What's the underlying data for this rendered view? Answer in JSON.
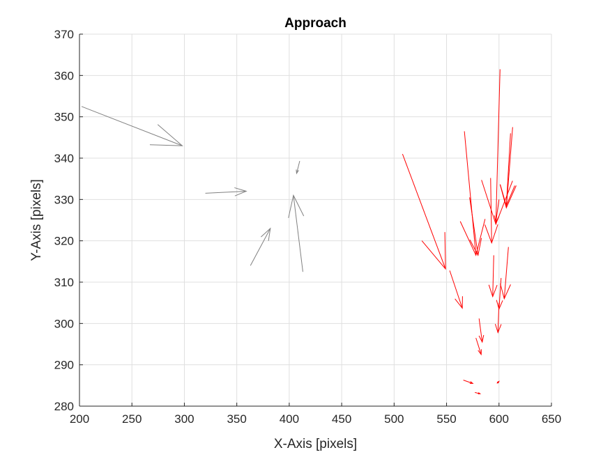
{
  "chart_data": {
    "type": "quiver",
    "title": "Approach",
    "xlabel": "X-Axis [pixels]",
    "ylabel": "Y-Axis [pixels]",
    "xlim": [
      200,
      650
    ],
    "ylim": [
      280,
      370
    ],
    "xticks": [
      200,
      250,
      300,
      350,
      400,
      450,
      500,
      550,
      600,
      650
    ],
    "yticks": [
      280,
      290,
      300,
      310,
      320,
      330,
      340,
      350,
      360,
      370
    ],
    "grid": true,
    "series": [
      {
        "color": "#808080",
        "vectors": [
          {
            "x": 202,
            "y": 352.5,
            "x2": 298,
            "y2": 343
          },
          {
            "x": 320,
            "y": 331.5,
            "x2": 359,
            "y2": 332
          },
          {
            "x": 363,
            "y": 314,
            "x2": 382,
            "y2": 323
          },
          {
            "x": 413,
            "y": 312.5,
            "x2": 404,
            "y2": 331
          },
          {
            "x": 410,
            "y": 339.3,
            "x2": 407,
            "y2": 336.3
          }
        ]
      },
      {
        "color": "#ff0000",
        "vectors": [
          {
            "x": 508,
            "y": 341,
            "x2": 549,
            "y2": 313.2
          },
          {
            "x": 553,
            "y": 312.8,
            "x2": 565,
            "y2": 303.7
          },
          {
            "x": 567,
            "y": 346.5,
            "x2": 578,
            "y2": 316.5
          },
          {
            "x": 572,
            "y": 330.5,
            "x2": 580,
            "y2": 316.5
          },
          {
            "x": 592,
            "y": 335.2,
            "x2": 593,
            "y2": 319.5
          },
          {
            "x": 601,
            "y": 361.5,
            "x2": 597,
            "y2": 324
          },
          {
            "x": 600,
            "y": 330,
            "x2": 597,
            "y2": 324.5
          },
          {
            "x": 613,
            "y": 347.5,
            "x2": 607,
            "y2": 328
          },
          {
            "x": 611,
            "y": 346,
            "x2": 607,
            "y2": 328.5
          },
          {
            "x": 609,
            "y": 318.5,
            "x2": 605,
            "y2": 306
          },
          {
            "x": 595,
            "y": 316.5,
            "x2": 594,
            "y2": 306.5
          },
          {
            "x": 602,
            "y": 311,
            "x2": 600,
            "y2": 303.5
          },
          {
            "x": 600,
            "y": 305,
            "x2": 599,
            "y2": 297.8
          },
          {
            "x": 581,
            "y": 301.2,
            "x2": 584,
            "y2": 295.5
          },
          {
            "x": 578,
            "y": 296.5,
            "x2": 583,
            "y2": 292.5
          },
          {
            "x": 566,
            "y": 286.3,
            "x2": 575,
            "y2": 285.5
          },
          {
            "x": 577,
            "y": 283.3,
            "x2": 582,
            "y2": 283
          },
          {
            "x": 598,
            "y": 285.5,
            "x2": 600,
            "y2": 286
          }
        ]
      }
    ]
  }
}
